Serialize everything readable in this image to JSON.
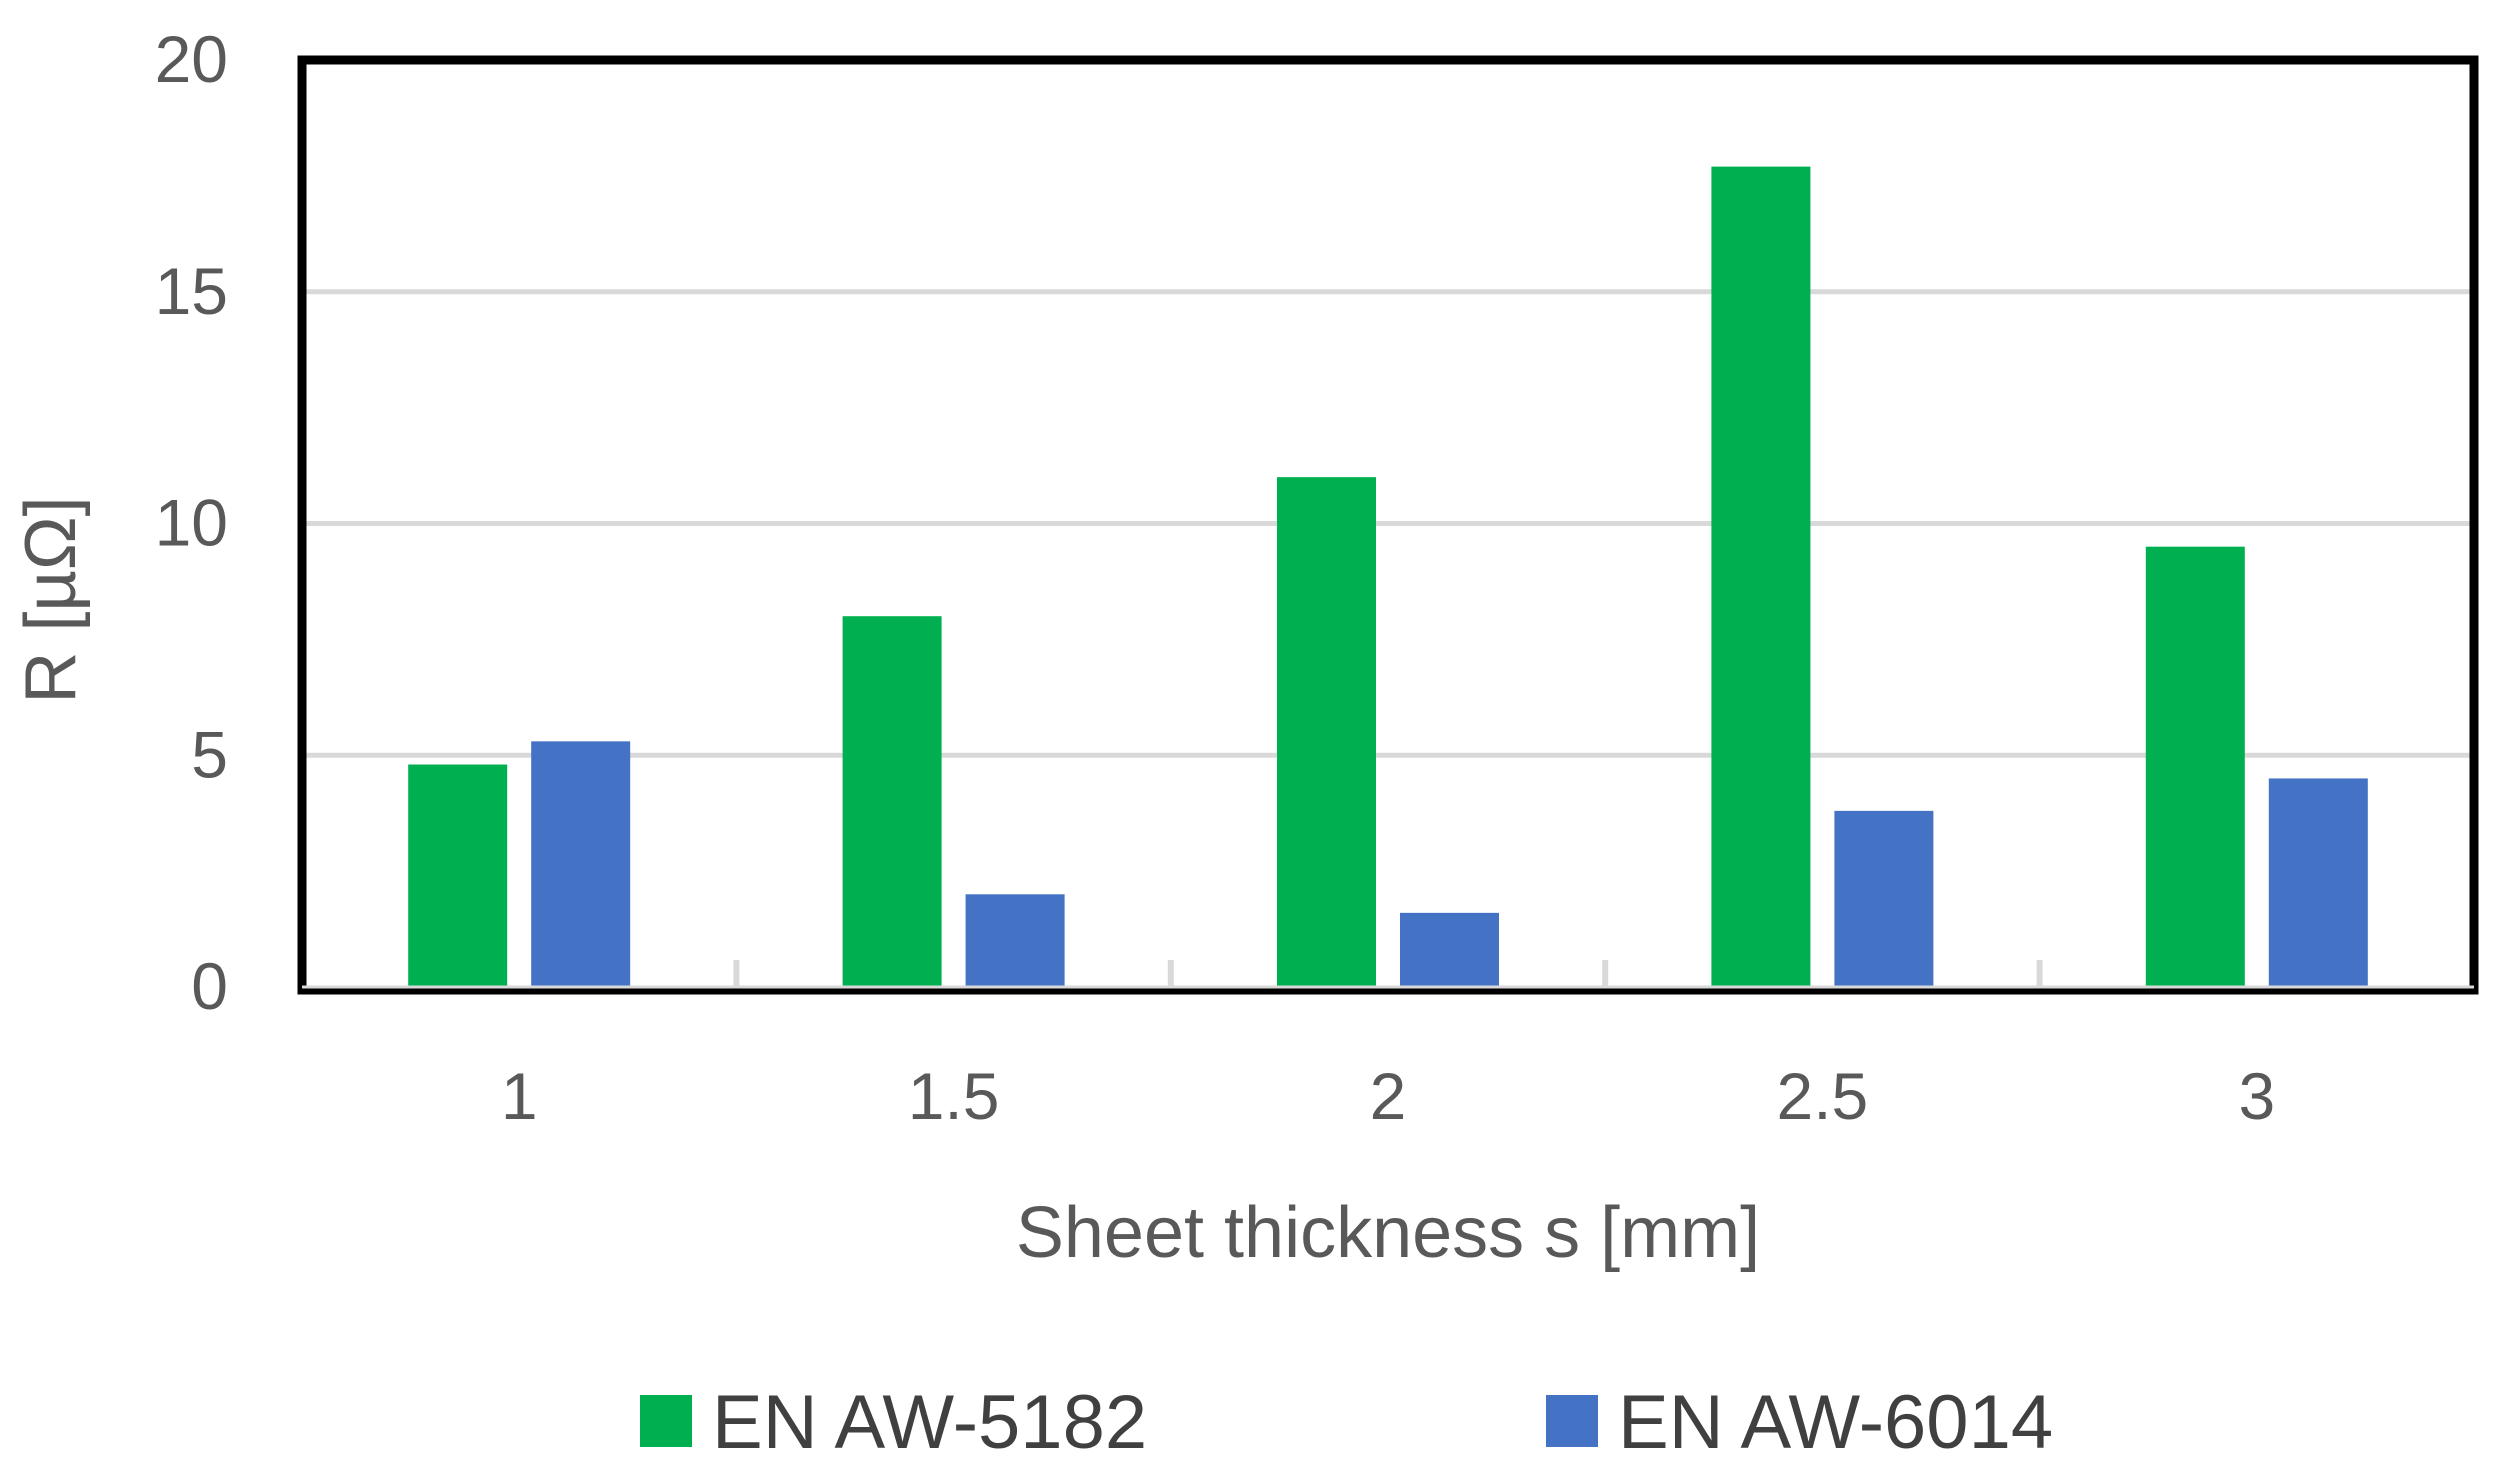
{
  "chart_data": {
    "type": "bar",
    "categories": [
      "1",
      "1.5",
      "2",
      "2.5",
      "3"
    ],
    "series": [
      {
        "name": "EN AW-5182",
        "color": "#00b050",
        "values": [
          4.8,
          8.0,
          11.0,
          17.7,
          9.5
        ]
      },
      {
        "name": "EN AW-6014",
        "color": "#4472c4",
        "values": [
          5.3,
          2.0,
          1.6,
          3.8,
          4.5
        ]
      }
    ],
    "title": "",
    "xlabel": "Sheet thickness s [mm]",
    "ylabel": "R [µΩ]",
    "ylim": [
      0,
      20
    ],
    "yticks": [
      "0",
      "5",
      "10",
      "15",
      "20"
    ],
    "grid": true,
    "legend_position": "bottom"
  }
}
